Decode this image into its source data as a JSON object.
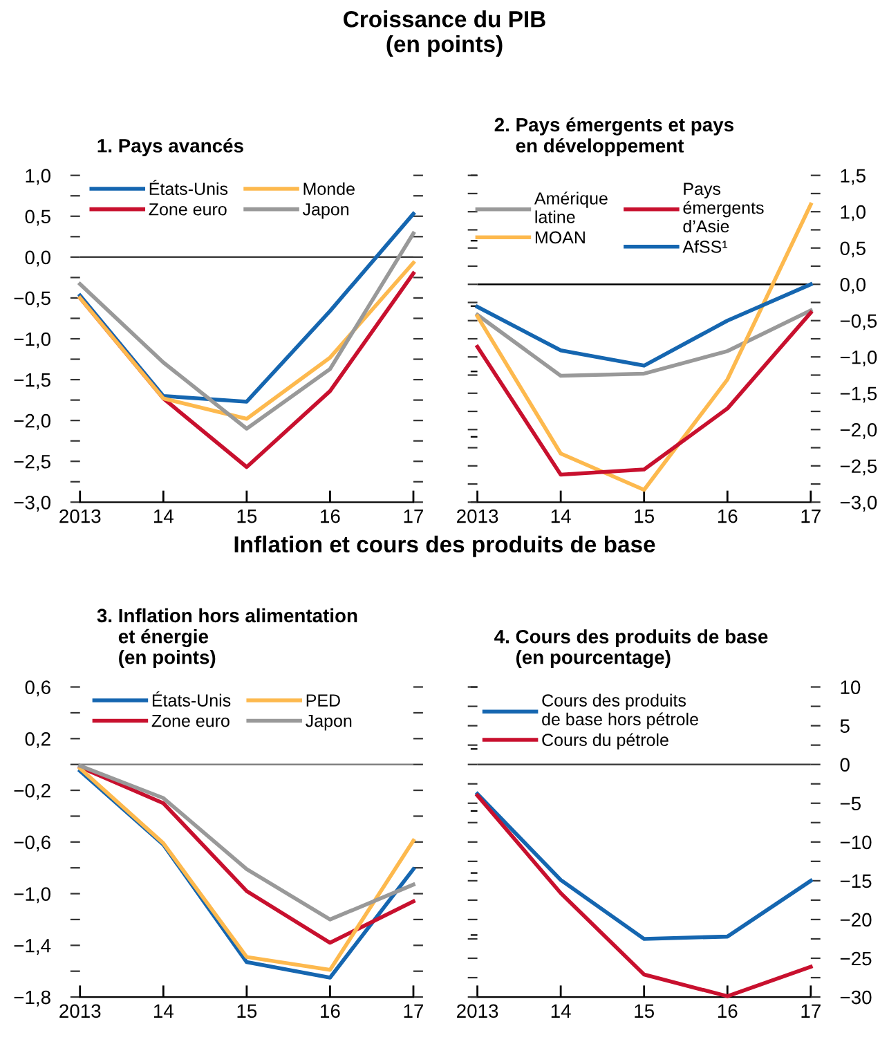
{
  "chart_data": [
    {
      "type": "line",
      "title": "1. Pays avancés",
      "annotations": [
        "Croissance du PIB\n(en points)"
      ],
      "categories": [
        "2013",
        "14",
        "15",
        "16",
        "17"
      ],
      "ylim": [
        -3.0,
        1.0
      ],
      "yticks": [
        {
          "value": -3.0,
          "label": "−3,0"
        },
        {
          "value": -2.75,
          "label": null
        },
        {
          "value": -2.5,
          "label": "−2,5"
        },
        {
          "value": -2.25,
          "label": null
        },
        {
          "value": -2.0,
          "label": "−2,0"
        },
        {
          "value": -1.75,
          "label": null
        },
        {
          "value": -1.5,
          "label": "−1,5"
        },
        {
          "value": -1.25,
          "label": null
        },
        {
          "value": -1.0,
          "label": "−1,0"
        },
        {
          "value": -0.75,
          "label": null
        },
        {
          "value": -0.5,
          "label": "−0,5"
        },
        {
          "value": -0.25,
          "label": null
        },
        {
          "value": 0.0,
          "label": "0,0"
        },
        {
          "value": 0.25,
          "label": null
        },
        {
          "value": 0.5,
          "label": "0,5"
        },
        {
          "value": 0.75,
          "label": null
        },
        {
          "value": 1.0,
          "label": "1,0"
        }
      ],
      "ref_lines": [
        {
          "axis": "y",
          "value": 0,
          "color": "#404040"
        }
      ],
      "legend": "top",
      "grid": false,
      "series": [
        {
          "name": "États-Unis",
          "color": "#1566b0",
          "values": [
            -0.47,
            -1.7,
            -1.77,
            -0.66,
            0.53
          ]
        },
        {
          "name": "Zone euro",
          "color": "#c8102e",
          "values": [
            -0.5,
            -1.73,
            -2.57,
            -1.64,
            -0.2
          ]
        },
        {
          "name": "Monde",
          "color": "#fdb94e",
          "values": [
            -0.5,
            -1.73,
            -1.98,
            -1.23,
            -0.07
          ]
        },
        {
          "name": "Japon",
          "color": "#999999",
          "values": [
            -0.33,
            -1.29,
            -2.1,
            -1.37,
            0.29
          ]
        }
      ]
    },
    {
      "type": "line",
      "title": "2. Pays émergents et pays\n    en développement",
      "categories": [
        "2013",
        "14",
        "15",
        "16",
        "17"
      ],
      "y2lim": [
        -3.0,
        1.5
      ],
      "y2ticks": [
        {
          "value": -3.0,
          "label": "−3,0"
        },
        {
          "value": -2.75,
          "label": null
        },
        {
          "value": -2.5,
          "label": "−2,5"
        },
        {
          "value": -2.25,
          "label": null
        },
        {
          "value": -2.0,
          "label": "−2,0"
        },
        {
          "value": -1.75,
          "label": null
        },
        {
          "value": -1.5,
          "label": "−1,5"
        },
        {
          "value": -1.25,
          "label": null
        },
        {
          "value": -1.0,
          "label": "−1,0"
        },
        {
          "value": -0.75,
          "label": null
        },
        {
          "value": -0.5,
          "label": "−0,5"
        },
        {
          "value": -0.25,
          "label": null
        },
        {
          "value": 0.0,
          "label": "0,0"
        },
        {
          "value": 0.25,
          "label": null
        },
        {
          "value": 0.5,
          "label": "0,5"
        },
        {
          "value": 0.75,
          "label": null
        },
        {
          "value": 1.0,
          "label": "1,0"
        },
        {
          "value": 1.25,
          "label": null
        },
        {
          "value": 1.5,
          "label": "1,5"
        }
      ],
      "ref_lines": [
        {
          "axis": "y2",
          "value": 0,
          "color": "#000000"
        }
      ],
      "legend": "top",
      "grid": false,
      "series": [
        {
          "name": "Amérique\nlatine",
          "color": "#999999",
          "axis": "y2",
          "values": [
            -0.42,
            -1.26,
            -1.23,
            -0.92,
            -0.36
          ]
        },
        {
          "name": "MOAN",
          "color": "#fdb94e",
          "axis": "y2",
          "values": [
            -0.44,
            -2.33,
            -2.83,
            -1.31,
            1.1
          ]
        },
        {
          "name": "Pays\némergents\nd’Asie",
          "color": "#c8102e",
          "axis": "y2",
          "values": [
            -0.86,
            -2.62,
            -2.55,
            -1.71,
            -0.39
          ]
        },
        {
          "name": "AfSS¹",
          "color": "#1566b0",
          "axis": "y2",
          "values": [
            -0.31,
            -0.91,
            -1.12,
            -0.5,
            0.0
          ]
        }
      ]
    },
    {
      "type": "line",
      "title": "3. Inflation hors alimentation\n    et énergie\n    (en points)",
      "annotations": [
        "Inflation et cours des produits de base"
      ],
      "categories": [
        "2013",
        "14",
        "15",
        "16",
        "17"
      ],
      "ylim": [
        -1.8,
        0.6
      ],
      "yticks": [
        {
          "value": -1.8,
          "label": "−1,8"
        },
        {
          "value": -1.6,
          "label": null
        },
        {
          "value": -1.4,
          "label": "−1,4"
        },
        {
          "value": -1.2,
          "label": null
        },
        {
          "value": -1.0,
          "label": "−1,0"
        },
        {
          "value": -0.8,
          "label": null
        },
        {
          "value": -0.6,
          "label": "−0,6"
        },
        {
          "value": -0.4,
          "label": null
        },
        {
          "value": -0.2,
          "label": "−0,2"
        },
        {
          "value": 0.0,
          "label": null
        },
        {
          "value": 0.2,
          "label": "0,2"
        },
        {
          "value": 0.4,
          "label": null
        },
        {
          "value": 0.6,
          "label": "0,6"
        }
      ],
      "ref_lines": [
        {
          "axis": "y",
          "value": 0,
          "color": "#808080"
        }
      ],
      "legend": "top",
      "grid": false,
      "series": [
        {
          "name": "États-Unis",
          "color": "#1566b0",
          "values": [
            -0.05,
            -0.62,
            -1.53,
            -1.65,
            -0.81
          ]
        },
        {
          "name": "Zone euro",
          "color": "#c8102e",
          "values": [
            -0.02,
            -0.3,
            -0.98,
            -1.38,
            -1.06
          ]
        },
        {
          "name": "PED",
          "color": "#fdb94e",
          "values": [
            -0.03,
            -0.61,
            -1.49,
            -1.59,
            -0.59
          ]
        },
        {
          "name": "Japon",
          "color": "#999999",
          "values": [
            -0.01,
            -0.26,
            -0.81,
            -1.2,
            -0.93
          ]
        }
      ]
    },
    {
      "type": "line",
      "title": "4. Cours des produits de base\n    (en pourcentage)",
      "categories": [
        "2013",
        "14",
        "15",
        "16",
        "17"
      ],
      "y2lim": [
        -30,
        10
      ],
      "y2ticks": [
        {
          "value": -30,
          "label": "−30"
        },
        {
          "value": -27.5,
          "label": null
        },
        {
          "value": -25,
          "label": "−25"
        },
        {
          "value": -22.5,
          "label": null
        },
        {
          "value": -20,
          "label": "−20"
        },
        {
          "value": -17.5,
          "label": null
        },
        {
          "value": -15,
          "label": "−15"
        },
        {
          "value": -12.5,
          "label": null
        },
        {
          "value": -10,
          "label": "−10"
        },
        {
          "value": -7.5,
          "label": null
        },
        {
          "value": -5,
          "label": "−5"
        },
        {
          "value": -2.5,
          "label": null
        },
        0,
        {
          "value": 2.5,
          "label": null
        },
        5,
        {
          "value": 7.5,
          "label": null
        },
        10
      ],
      "ref_lines": [
        {
          "axis": "y2",
          "value": 0,
          "color": "#404040"
        }
      ],
      "legend": "top left",
      "grid": false,
      "series": [
        {
          "name": "Cours des produits\nde base hors pétrole",
          "color": "#1566b0",
          "axis": "y2",
          "values": [
            -3.8,
            -14.9,
            -22.5,
            -22.2,
            -15.0
          ]
        },
        {
          "name": "Cours du pétrole",
          "color": "#c8102e",
          "axis": "y2",
          "values": [
            -4.0,
            -16.6,
            -27.1,
            -29.9,
            -26.1
          ]
        }
      ]
    }
  ]
}
